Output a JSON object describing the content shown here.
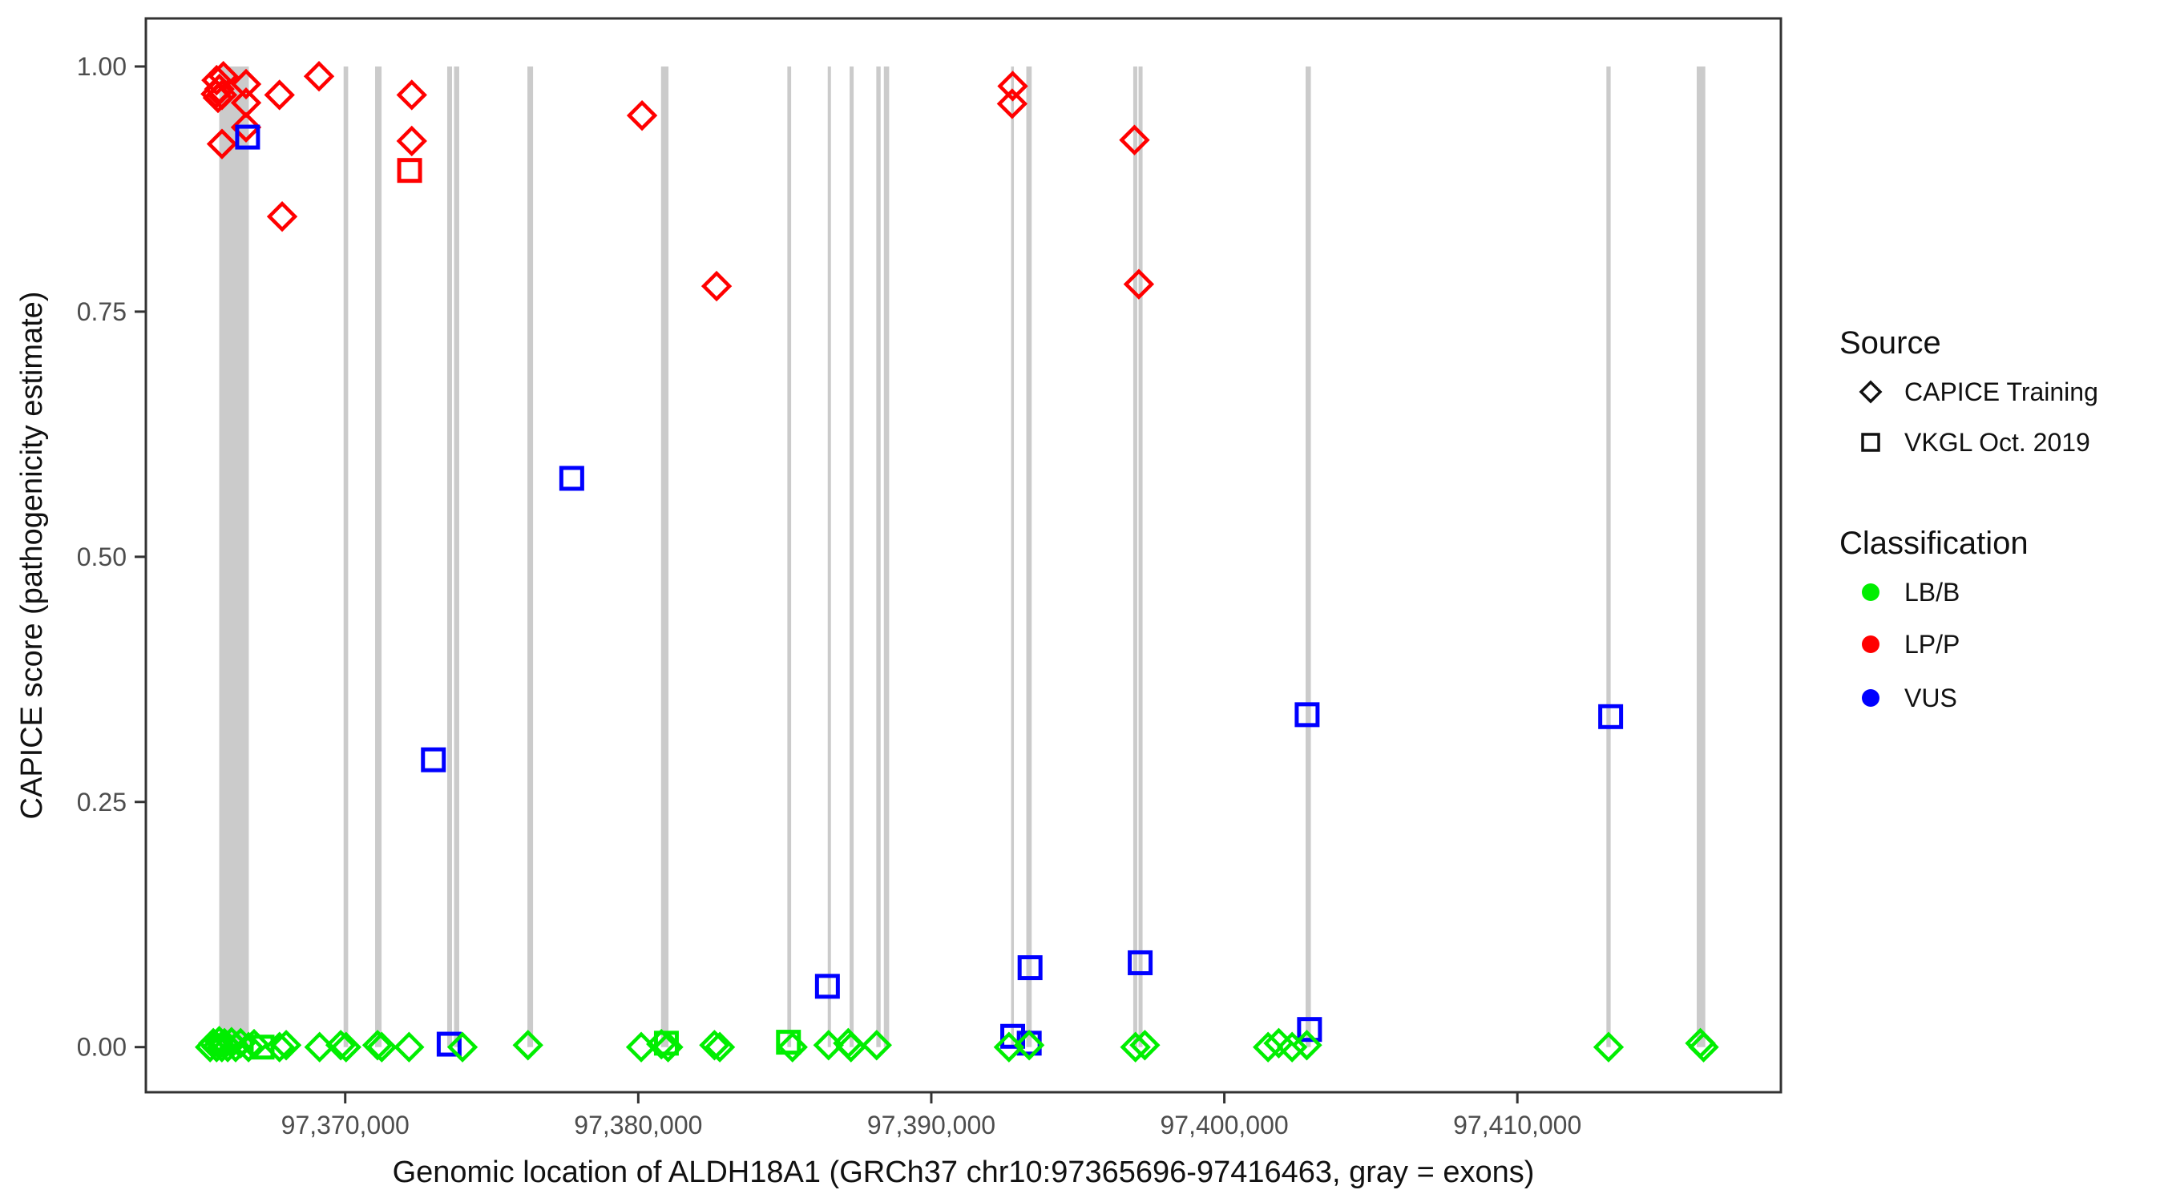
{
  "colors": {
    "lbb_green": "#00ee00",
    "lpp_red": "#ff0000",
    "vus_blue": "#0000ff",
    "exon_gray": "#cbcbcb",
    "axis_text": "#4d4d4d",
    "panel_border": "#333333"
  },
  "axes": {
    "x": {
      "title": "Genomic location of ALDH18A1 (GRCh37 chr10:97365696-97416463, gray = exons)",
      "domain": [
        97363197,
        97418993
      ],
      "ticks": [
        {
          "value": 97370000,
          "label": "97,370,000"
        },
        {
          "value": 97380000,
          "label": "97,380,000"
        },
        {
          "value": 97390000,
          "label": "97,390,000"
        },
        {
          "value": 97400000,
          "label": "97,400,000"
        },
        {
          "value": 97410000,
          "label": "97,410,000"
        }
      ]
    },
    "y": {
      "title": "CAPICE score (pathogenicity estimate)",
      "domain": [
        -0.046,
        1.049
      ],
      "ticks": [
        {
          "value": 0.0,
          "label": "0.00"
        },
        {
          "value": 0.25,
          "label": "0.25"
        },
        {
          "value": 0.5,
          "label": "0.50"
        },
        {
          "value": 0.75,
          "label": "0.75"
        },
        {
          "value": 1.0,
          "label": "1.00"
        }
      ]
    }
  },
  "legend": {
    "source": {
      "title": "Source",
      "items": [
        {
          "label": "CAPICE Training",
          "marker": "diamond"
        },
        {
          "label": "VKGL Oct. 2019",
          "marker": "square"
        }
      ]
    },
    "classification": {
      "title": "Classification",
      "items": [
        {
          "label": "LB/B",
          "color": "#00ee00"
        },
        {
          "label": "LP/P",
          "color": "#ff0000"
        },
        {
          "label": "VUS",
          "color": "#0000ff"
        }
      ]
    }
  },
  "chart_data": {
    "type": "scatter",
    "title": "",
    "xlabel": "Genomic location of ALDH18A1 (GRCh37 chr10:97365696-97416463, gray = exons)",
    "ylabel": "CAPICE score (pathogenicity estimate)",
    "xlim": [
      97363197,
      97418993
    ],
    "ylim": [
      -0.046,
      1.049
    ],
    "grid": false,
    "legend_position": "right",
    "exons_gray_bands_bp": [
      [
        97365700,
        97366710
      ],
      [
        97369945,
        97370100
      ],
      [
        97371020,
        97371240
      ],
      [
        97373480,
        97373645
      ],
      [
        97373713,
        97373890
      ],
      [
        97376217,
        97376410
      ],
      [
        97380778,
        97381032
      ],
      [
        97385088,
        97385217
      ],
      [
        97386466,
        97386576
      ],
      [
        97387213,
        97387350
      ],
      [
        97388124,
        97388272
      ],
      [
        97388381,
        97388562
      ],
      [
        97392723,
        97392816
      ],
      [
        97393243,
        97393426
      ],
      [
        97396892,
        97397029
      ],
      [
        97397073,
        97397210
      ],
      [
        97402773,
        97402953
      ],
      [
        97413039,
        97413184
      ],
      [
        97416120,
        97416413
      ]
    ],
    "series": [
      {
        "name": "LP/P CAPICE Training",
        "source": "CAPICE Training",
        "classification": "LP/P",
        "marker": "diamond",
        "color": "#ff0000",
        "points": [
          [
            97365585,
            0.972
          ],
          [
            97365612,
            0.986
          ],
          [
            97365658,
            0.968
          ],
          [
            97365705,
            0.977
          ],
          [
            97365795,
            0.971
          ],
          [
            97365795,
            0.921
          ],
          [
            97365842,
            0.99
          ],
          [
            97366616,
            0.982
          ],
          [
            97366616,
            0.963
          ],
          [
            97366616,
            0.938
          ],
          [
            97367757,
            0.971
          ],
          [
            97367848,
            0.847
          ],
          [
            97369106,
            0.99
          ],
          [
            97372271,
            0.971
          ],
          [
            97372271,
            0.924
          ],
          [
            97380129,
            0.95
          ],
          [
            97382673,
            0.776
          ],
          [
            97392760,
            0.962
          ],
          [
            97392778,
            0.98
          ],
          [
            97396934,
            0.925
          ],
          [
            97397082,
            0.778
          ]
        ]
      },
      {
        "name": "LP/P VKGL Oct. 2019",
        "source": "VKGL Oct. 2019",
        "classification": "LP/P",
        "marker": "square",
        "color": "#ff0000",
        "points": [
          [
            97372197,
            0.894
          ]
        ]
      },
      {
        "name": "VUS VKGL Oct. 2019",
        "source": "VKGL Oct. 2019",
        "classification": "VUS",
        "marker": "square",
        "color": "#0000ff",
        "points": [
          [
            97366668,
            0.928
          ],
          [
            97373009,
            0.293
          ],
          [
            97373546,
            0.003
          ],
          [
            97377731,
            0.58
          ],
          [
            97386455,
            0.062
          ],
          [
            97392778,
            0.011
          ],
          [
            97393342,
            0.004
          ],
          [
            97393370,
            0.081
          ],
          [
            97397128,
            0.086
          ],
          [
            97402826,
            0.339
          ],
          [
            97402907,
            0.018
          ],
          [
            97413184,
            0.337
          ]
        ]
      },
      {
        "name": "LB/B VKGL Oct. 2019",
        "source": "VKGL Oct. 2019",
        "classification": "LB/B",
        "marker": "square",
        "color": "#00ee00",
        "points": [
          [
            97367163,
            0.0
          ],
          [
            97380960,
            0.004
          ],
          [
            97385126,
            0.005
          ]
        ]
      },
      {
        "name": "LB/B CAPICE Training",
        "source": "CAPICE Training",
        "classification": "LB/B",
        "marker": "diamond",
        "color": "#00ee00",
        "points": [
          [
            97365390,
            0.0
          ],
          [
            97365500,
            0.004
          ],
          [
            97365610,
            0.0
          ],
          [
            97365700,
            0.006
          ],
          [
            97365790,
            0.0
          ],
          [
            97365880,
            0.004
          ],
          [
            97365990,
            0.0
          ],
          [
            97366120,
            0.005
          ],
          [
            97366260,
            0.0
          ],
          [
            97366430,
            0.004
          ],
          [
            97366700,
            0.0
          ],
          [
            97366890,
            0.003
          ],
          [
            97367757,
            0.0
          ],
          [
            97367985,
            0.002
          ],
          [
            97369125,
            0.0
          ],
          [
            97369846,
            0.002
          ],
          [
            97370029,
            0.0
          ],
          [
            97371102,
            0.002
          ],
          [
            97371247,
            0.0
          ],
          [
            97372178,
            0.0
          ],
          [
            97374002,
            0.0
          ],
          [
            97376236,
            0.002
          ],
          [
            97380101,
            0.0
          ],
          [
            97380790,
            0.003
          ],
          [
            97381018,
            0.0
          ],
          [
            97382600,
            0.002
          ],
          [
            97382783,
            0.0
          ],
          [
            97385263,
            0.0
          ],
          [
            97386494,
            0.002
          ],
          [
            97387166,
            0.004
          ],
          [
            97387259,
            0.0
          ],
          [
            97388135,
            0.002
          ],
          [
            97392650,
            0.0
          ],
          [
            97393340,
            0.002
          ],
          [
            97396967,
            0.0
          ],
          [
            97397287,
            0.002
          ],
          [
            97401493,
            0.0
          ],
          [
            97401857,
            0.004
          ],
          [
            97402313,
            0.0
          ],
          [
            97402814,
            0.002
          ],
          [
            97413112,
            0.0
          ],
          [
            97416245,
            0.004
          ],
          [
            97416355,
            0.0
          ]
        ]
      }
    ]
  }
}
